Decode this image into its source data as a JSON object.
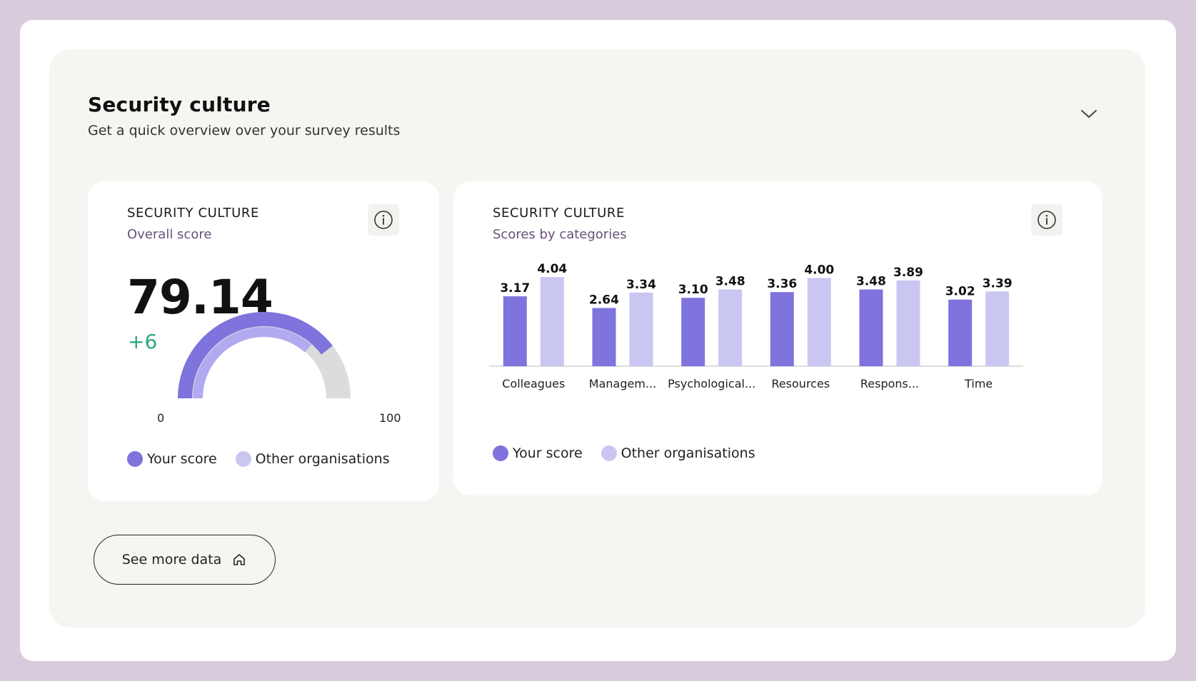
{
  "header": {
    "title": "Security culture",
    "subtitle": "Get a quick overview over your survey results"
  },
  "overall_card": {
    "eyebrow": "SECURITY CULTURE",
    "subtitle": "Overall score",
    "score": "79.14",
    "delta": "+6",
    "gauge_min": "0",
    "gauge_max": "100",
    "gauge_your_score": 79.14,
    "gauge_other_score": 73,
    "legend_your": "Your score",
    "legend_other": "Other organisations"
  },
  "category_card": {
    "eyebrow": "SECURITY CULTURE",
    "subtitle": "Scores by categories",
    "legend_your": "Your score",
    "legend_other": "Other organisations"
  },
  "chart_data": {
    "type": "bar",
    "categories": [
      "Colleagues",
      "Managem...",
      "Psychological...",
      "Resources",
      "Respons...",
      "Time"
    ],
    "series": [
      {
        "name": "Your score",
        "values": [
          3.17,
          2.64,
          3.1,
          3.36,
          3.48,
          3.02
        ]
      },
      {
        "name": "Other organisations",
        "values": [
          4.04,
          3.34,
          3.48,
          4.0,
          3.89,
          3.39
        ]
      }
    ],
    "value_labels": [
      [
        "3.17",
        "2.64",
        "3.10",
        "3.36",
        "3.48",
        "3.02"
      ],
      [
        "4.04",
        "3.34",
        "3.48",
        "4.00",
        "3.89",
        "3.39"
      ]
    ],
    "ylim": [
      0,
      4.5
    ],
    "legend": "bottom-left"
  },
  "colors": {
    "your_score": "#7f73dd",
    "other_orgs": "#cac6f2",
    "gauge_track": "#dcdcdc",
    "gauge_other": "#b2aaf0",
    "delta_green": "#2ba57e",
    "subtitle_purple": "#6b4f7a",
    "frame": "#d8ccdc"
  },
  "actions": {
    "see_more_label": "See more data"
  },
  "icons": {
    "chevron": "chevron-down-icon",
    "info": "info-icon",
    "home": "home-icon"
  }
}
